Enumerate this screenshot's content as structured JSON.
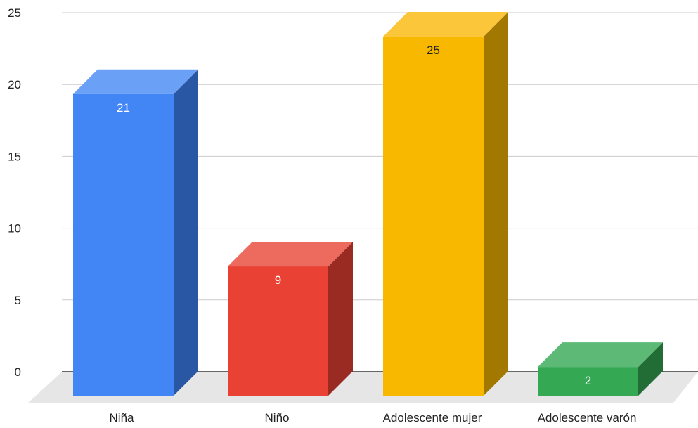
{
  "chart_data": {
    "type": "bar",
    "style": "3d",
    "categories": [
      "Niña",
      "Niño",
      "Adolescente mujer",
      "Adolescente varón"
    ],
    "values": [
      21,
      9,
      25,
      2
    ],
    "data_labels": [
      "21",
      "9",
      "25",
      "2"
    ],
    "ylim": [
      0,
      25
    ],
    "yticks": [
      "0",
      "5",
      "10",
      "15",
      "20",
      "25"
    ],
    "grid": true,
    "legend": "none",
    "colors": {
      "front": [
        "#4285f4",
        "#e94235",
        "#f9b800",
        "#34a853"
      ],
      "top": [
        "#6aa0f6",
        "#ed6a5e",
        "#fbc63a",
        "#5cba76"
      ],
      "side": [
        "#2a57a3",
        "#992b23",
        "#a37800",
        "#226d36"
      ],
      "label": [
        "#ffffff",
        "#ffffff",
        "#222222",
        "#ffffff"
      ],
      "grid": "#cccccc",
      "floor": "#e6e6e6",
      "baseline": "#333333"
    }
  }
}
